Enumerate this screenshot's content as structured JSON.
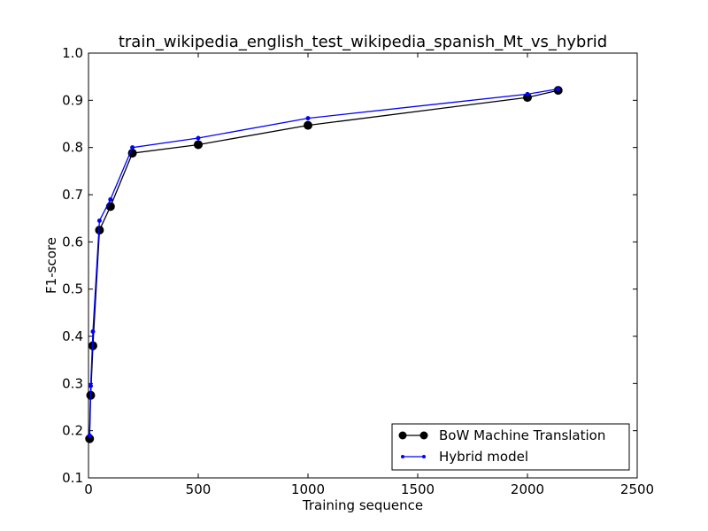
{
  "chart_data": {
    "type": "line",
    "title": "train_wikipedia_english_test_wikipedia_spanish_Mt_vs_hybrid",
    "xlabel": "Training sequence",
    "ylabel": "F1-score",
    "xlim": [
      0,
      2500
    ],
    "ylim": [
      0.1,
      1.0
    ],
    "xticks": [
      0,
      500,
      1000,
      1500,
      2000,
      2500
    ],
    "yticks": [
      0.1,
      0.2,
      0.3,
      0.4,
      0.5,
      0.6,
      0.7,
      0.8,
      0.9,
      1.0
    ],
    "xtick_labels": [
      "0",
      "500",
      "1000",
      "1500",
      "2000",
      "2500"
    ],
    "ytick_labels": [
      "0.1",
      "0.2",
      "0.3",
      "0.4",
      "0.5",
      "0.6",
      "0.7",
      "0.8",
      "0.9",
      "1.0"
    ],
    "grid": false,
    "legend_position": "lower-right",
    "series": [
      {
        "name": "BoW Machine Translation",
        "color": "#000000",
        "marker": "large-dot",
        "x": [
          5,
          10,
          20,
          50,
          100,
          200,
          500,
          1000,
          2000,
          2140
        ],
        "y": [
          0.183,
          0.275,
          0.38,
          0.625,
          0.675,
          0.788,
          0.806,
          0.847,
          0.906,
          0.921
        ]
      },
      {
        "name": "Hybrid model",
        "color": "#0000ff",
        "marker": "small-dot",
        "x": [
          5,
          10,
          20,
          50,
          100,
          200,
          500,
          1000,
          2000,
          2140
        ],
        "y": [
          0.19,
          0.295,
          0.41,
          0.645,
          0.69,
          0.8,
          0.82,
          0.862,
          0.913,
          0.924
        ]
      }
    ]
  }
}
